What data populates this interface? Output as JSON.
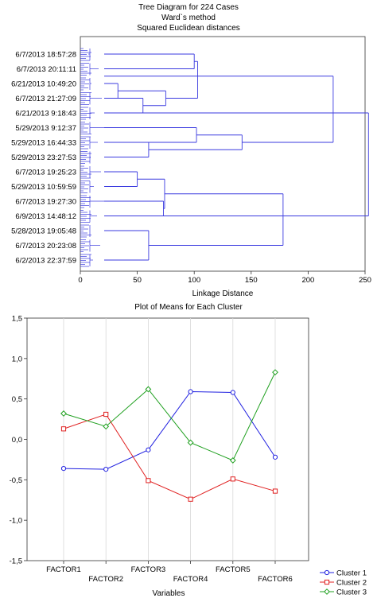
{
  "chart_data": [
    {
      "type": "dendrogram",
      "title": "Tree Diagram for 224 Cases",
      "subtitle_1": "Ward`s method",
      "subtitle_2": "Squared Euclidean distances",
      "xlabel": "Linkage Distance",
      "xlim": [
        0,
        250
      ],
      "x_ticks": [
        0,
        50,
        100,
        150,
        200,
        250
      ],
      "leaf_labels": [
        "6/7/2013 18:57:28",
        "6/7/2013 20:11:11",
        "6/21/2013 10:49:20",
        "6/7/2013 21:27:09",
        "6/21/2013 9:18:43",
        "5/29/2013 9:12:37",
        "5/29/2013 16:44:33",
        "5/29/2013 23:27:53",
        "6/7/2013 19:25:23",
        "5/29/2013 10:59:59",
        "6/7/2013 19:27:30",
        "6/9/2013 14:48:12",
        "5/28/2013 19:05:48",
        "6/7/2013 20:23:08",
        "6/2/2013 22:37:59"
      ],
      "color": "#3a3adf",
      "merges": [
        {
          "a": 0,
          "b": 1,
          "height": 100
        },
        {
          "a": 2,
          "b": 3,
          "height": 33
        },
        {
          "a": 3,
          "b": 4,
          "height": 55
        },
        {
          "a": 2.5,
          "b": 3.5,
          "height": 75
        },
        {
          "a": 0.5,
          "b": 3,
          "height": 103
        },
        {
          "a": 5,
          "b": 6,
          "height": 102
        },
        {
          "a": 6,
          "b": 7,
          "height": 60
        },
        {
          "a": 5.5,
          "b": 6.5,
          "height": 142
        },
        {
          "a": 1.5,
          "b": 6,
          "height": 222
        },
        {
          "a": 8,
          "b": 9,
          "height": 50
        },
        {
          "a": 10,
          "b": 11,
          "height": 73
        },
        {
          "a": 8.5,
          "b": 10.5,
          "height": 74
        },
        {
          "a": 12,
          "b": 14,
          "height": 60
        },
        {
          "a": 9.5,
          "b": 13,
          "height": 178
        },
        {
          "a": 4,
          "b": 11,
          "height": 253
        }
      ]
    },
    {
      "type": "line",
      "title": "Plot of Means for Each Cluster",
      "xlabel": "Variables",
      "ylabel": "",
      "categories": [
        "FACTOR1",
        "FACTOR2",
        "FACTOR3",
        "FACTOR4",
        "FACTOR5",
        "FACTOR6"
      ],
      "ylim": [
        -1.5,
        1.5
      ],
      "y_ticks": [
        "-1,5",
        "-1,0",
        "-0,5",
        "0,0",
        "0,5",
        "1,0",
        "1,5"
      ],
      "legend_position": "bottom-right",
      "series": [
        {
          "name": "Cluster  1",
          "color": "#2020e0",
          "marker": "circle",
          "values": [
            -0.36,
            -0.37,
            -0.13,
            0.59,
            0.58,
            -0.22
          ]
        },
        {
          "name": "Cluster  2",
          "color": "#e02020",
          "marker": "square",
          "values": [
            0.13,
            0.31,
            -0.51,
            -0.74,
            -0.49,
            -0.64
          ]
        },
        {
          "name": "Cluster  3",
          "color": "#20a020",
          "marker": "diamond",
          "values": [
            0.32,
            0.16,
            0.62,
            -0.04,
            -0.26,
            0.83
          ]
        }
      ]
    }
  ]
}
